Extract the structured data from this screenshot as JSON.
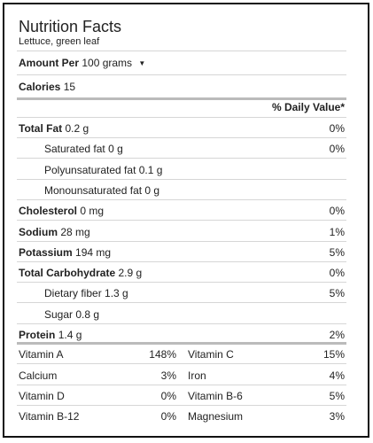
{
  "header": {
    "title": "Nutrition Facts",
    "subtitle": "Lettuce, green leaf"
  },
  "amount": {
    "label": "Amount Per",
    "value": "100 grams"
  },
  "calories": {
    "label": "Calories",
    "value": "15"
  },
  "daily_value_header": "% Daily Value*",
  "nutrients": [
    {
      "name": "Total Fat",
      "amount": "0.2 g",
      "dv": "0%",
      "bold": true,
      "indent": false
    },
    {
      "name": "Saturated fat",
      "amount": "0 g",
      "dv": "0%",
      "bold": false,
      "indent": true
    },
    {
      "name": "Polyunsaturated fat",
      "amount": "0.1 g",
      "dv": null,
      "bold": false,
      "indent": true
    },
    {
      "name": "Monounsaturated fat",
      "amount": "0 g",
      "dv": null,
      "bold": false,
      "indent": true
    },
    {
      "name": "Cholesterol",
      "amount": "0 mg",
      "dv": "0%",
      "bold": true,
      "indent": false
    },
    {
      "name": "Sodium",
      "amount": "28 mg",
      "dv": "1%",
      "bold": true,
      "indent": false
    },
    {
      "name": "Potassium",
      "amount": "194 mg",
      "dv": "5%",
      "bold": true,
      "indent": false
    },
    {
      "name": "Total Carbohydrate",
      "amount": "2.9 g",
      "dv": "0%",
      "bold": true,
      "indent": false
    },
    {
      "name": "Dietary fiber",
      "amount": "1.3 g",
      "dv": "5%",
      "bold": false,
      "indent": true
    },
    {
      "name": "Sugar",
      "amount": "0.8 g",
      "dv": null,
      "bold": false,
      "indent": true
    },
    {
      "name": "Protein",
      "amount": "1.4 g",
      "dv": "2%",
      "bold": true,
      "indent": false
    }
  ],
  "vitamins": [
    [
      {
        "name": "Vitamin A",
        "dv": "148%"
      },
      {
        "name": "Vitamin C",
        "dv": "15%"
      }
    ],
    [
      {
        "name": "Calcium",
        "dv": "3%"
      },
      {
        "name": "Iron",
        "dv": "4%"
      }
    ],
    [
      {
        "name": "Vitamin D",
        "dv": "0%"
      },
      {
        "name": "Vitamin B-6",
        "dv": "5%"
      }
    ],
    [
      {
        "name": "Vitamin B-12",
        "dv": "0%"
      },
      {
        "name": "Magnesium",
        "dv": "3%"
      }
    ]
  ]
}
